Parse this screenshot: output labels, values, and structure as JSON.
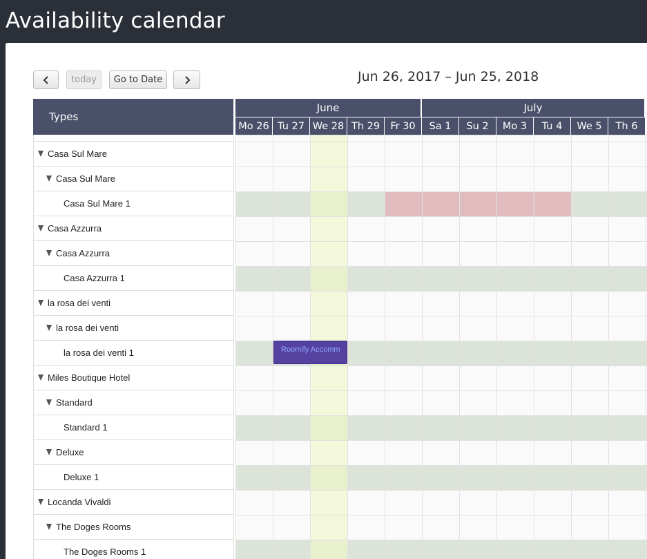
{
  "page": {
    "title": "Availability calendar"
  },
  "toolbar": {
    "prev_icon": "chevron-left-icon",
    "today_label": "today",
    "goto_label": "Go to Date",
    "next_icon": "chevron-right-icon",
    "range_label": "Jun 26, 2017 – Jun 25, 2018"
  },
  "resources": {
    "header": "Types",
    "rows": [
      {
        "label": "Casa Sul Mare",
        "level": 0,
        "expanded": true,
        "kind": "group"
      },
      {
        "label": "Casa Sul Mare",
        "level": 1,
        "expanded": true,
        "kind": "type"
      },
      {
        "label": "Casa Sul Mare 1",
        "level": 2,
        "kind": "unit"
      },
      {
        "label": "Casa Azzurra",
        "level": 0,
        "expanded": true,
        "kind": "group"
      },
      {
        "label": "Casa Azzurra",
        "level": 1,
        "expanded": true,
        "kind": "type"
      },
      {
        "label": "Casa Azzurra 1",
        "level": 2,
        "kind": "unit"
      },
      {
        "label": "la rosa dei venti",
        "level": 0,
        "expanded": true,
        "kind": "group"
      },
      {
        "label": "la rosa dei venti",
        "level": 1,
        "expanded": true,
        "kind": "type"
      },
      {
        "label": "la rosa dei venti 1",
        "level": 2,
        "kind": "unit"
      },
      {
        "label": "Miles Boutique Hotel",
        "level": 0,
        "expanded": true,
        "kind": "group"
      },
      {
        "label": "Standard",
        "level": 1,
        "expanded": true,
        "kind": "type"
      },
      {
        "label": "Standard 1",
        "level": 2,
        "kind": "unit"
      },
      {
        "label": "Deluxe",
        "level": 1,
        "expanded": true,
        "kind": "type"
      },
      {
        "label": "Deluxe 1",
        "level": 2,
        "kind": "unit"
      },
      {
        "label": "Locanda Vivaldi",
        "level": 0,
        "expanded": true,
        "kind": "group"
      },
      {
        "label": "The Doges Rooms",
        "level": 1,
        "expanded": true,
        "kind": "type"
      },
      {
        "label": "The Doges Rooms 1",
        "level": 2,
        "kind": "unit"
      }
    ]
  },
  "timeline": {
    "months": [
      {
        "label": "June",
        "days": 5
      },
      {
        "label": "July",
        "days": 6
      }
    ],
    "days": [
      "Mo 26",
      "Tu 27",
      "We 28",
      "Th 29",
      "Fr 30",
      "Sa 1",
      "Su 2",
      "Mo 3",
      "Tu 4",
      "We 5",
      "Th 6"
    ],
    "today_index": 2
  },
  "blocks": [
    {
      "row": 2,
      "start": 4,
      "end": 9,
      "state": "unavailable",
      "color": "#e1bcbe"
    }
  ],
  "events": [
    {
      "row": 8,
      "start": 1,
      "end": 3,
      "label": "Roomify Accomm",
      "color": "#5542a0"
    }
  ],
  "colors": {
    "header_bg": "#4a5069",
    "page_bg": "#2b3038",
    "today_bg": "#f6f9df",
    "available_bg": "#dde2d6",
    "unavailable_bg": "#e1bcbe",
    "event_bg": "#5542a0"
  }
}
